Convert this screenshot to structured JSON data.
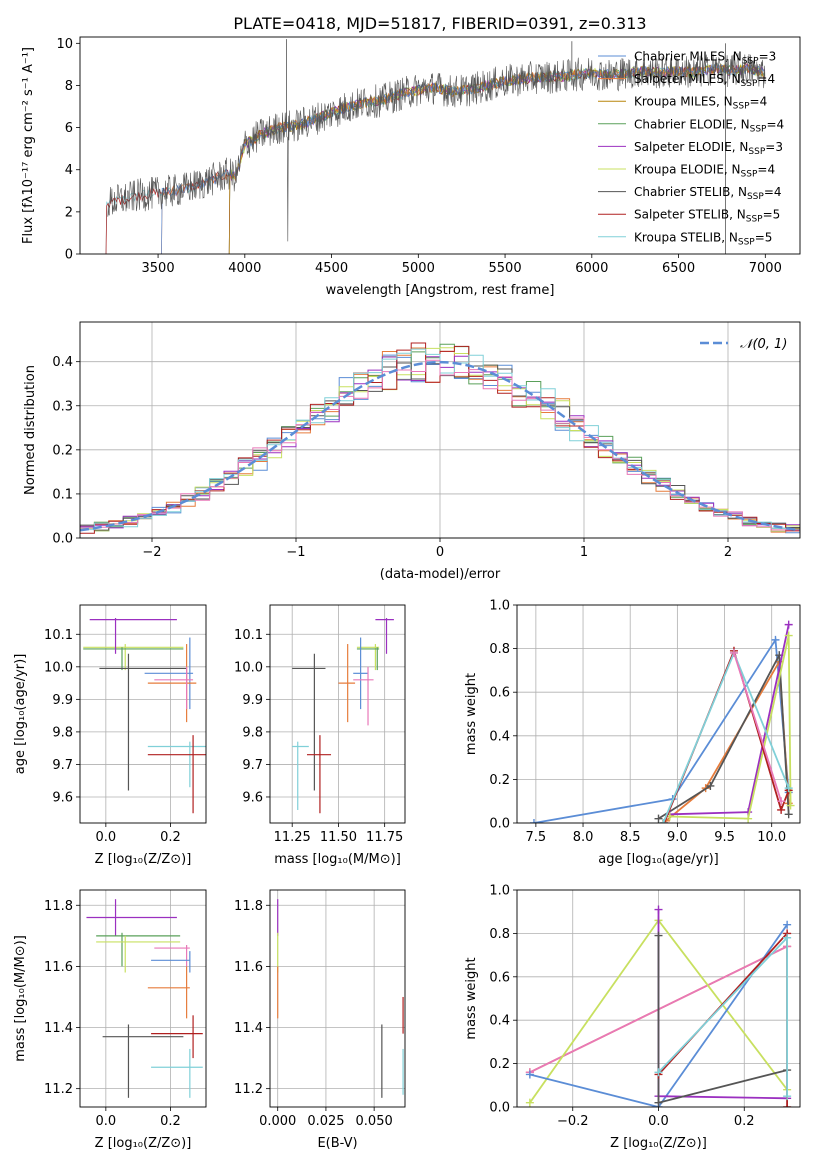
{
  "figure_title": "PLATE=0418, MJD=51817, FIBERID=0391, z=0.313",
  "colors": {
    "Chabrier MILES": "#5b8dd6",
    "Salpeter MILES": "#e67c3c",
    "Kroupa MILES": "#b8860b",
    "Chabrier ELODIE": "#5aa05a",
    "Salpeter ELODIE": "#9b30c0",
    "Kroupa ELODIE": "#c8e060",
    "Chabrier STELIB": "#555555",
    "Salpeter STELIB": "#b02020",
    "Kroupa STELIB": "#80d0d8",
    "pink": "#e878b8",
    "gauss": "#5b8dd6"
  },
  "chart_data": [
    {
      "id": "spectrum",
      "type": "line",
      "xlabel": "wavelength [Angstrom, rest frame]",
      "ylabel": "Flux [fλ10⁻¹⁷ erg cm⁻² s⁻¹ A⁻¹]",
      "xlim": [
        3050,
        7200
      ],
      "ylim": [
        0,
        10.3
      ],
      "xticks": [
        3500,
        4000,
        4500,
        5000,
        5500,
        6000,
        6500,
        7000
      ],
      "yticks": [
        0,
        2,
        4,
        6,
        8,
        10
      ],
      "legend_position": "right",
      "legend": [
        {
          "label": "Chabrier MILES, N",
          "sub": "SSP",
          "eq": "=3"
        },
        {
          "label": "Salpeter MILES, N",
          "sub": "SSP",
          "eq": "=4"
        },
        {
          "label": "Kroupa MILES, N",
          "sub": "SSP",
          "eq": "=4"
        },
        {
          "label": "Chabrier ELODIE, N",
          "sub": "SSP",
          "eq": "=4"
        },
        {
          "label": "Salpeter ELODIE, N",
          "sub": "SSP",
          "eq": "=3"
        },
        {
          "label": "Kroupa ELODIE, N",
          "sub": "SSP",
          "eq": "=4"
        },
        {
          "label": "Chabrier STELIB, N",
          "sub": "SSP",
          "eq": "=4"
        },
        {
          "label": "Salpeter STELIB, N",
          "sub": "SSP",
          "eq": "=5"
        },
        {
          "label": "Kroupa STELIB, N",
          "sub": "SSP",
          "eq": "=5"
        }
      ],
      "continuum": [
        [
          3200,
          2.4
        ],
        [
          3300,
          2.6
        ],
        [
          3400,
          2.8
        ],
        [
          3500,
          2.9
        ],
        [
          3600,
          3.0
        ],
        [
          3700,
          3.2
        ],
        [
          3800,
          3.5
        ],
        [
          3900,
          3.8
        ],
        [
          3950,
          3.7
        ],
        [
          4000,
          5.2
        ],
        [
          4100,
          5.7
        ],
        [
          4200,
          6.0
        ],
        [
          4300,
          6.1
        ],
        [
          4400,
          6.4
        ],
        [
          4500,
          6.7
        ],
        [
          4600,
          7.0
        ],
        [
          4700,
          7.2
        ],
        [
          4800,
          7.3
        ],
        [
          4900,
          7.6
        ],
        [
          5000,
          7.8
        ],
        [
          5100,
          7.9
        ],
        [
          5200,
          7.7
        ],
        [
          5300,
          7.8
        ],
        [
          5400,
          8.0
        ],
        [
          5500,
          8.2
        ],
        [
          5600,
          8.3
        ],
        [
          5700,
          8.4
        ],
        [
          5800,
          8.4
        ],
        [
          5900,
          8.5
        ],
        [
          6000,
          8.6
        ],
        [
          6100,
          8.5
        ],
        [
          6200,
          8.6
        ],
        [
          6300,
          8.7
        ],
        [
          6400,
          8.6
        ],
        [
          6500,
          8.7
        ],
        [
          6600,
          8.6
        ],
        [
          6700,
          8.8
        ],
        [
          6800,
          8.7
        ],
        [
          6900,
          8.8
        ],
        [
          7000,
          8.6
        ]
      ]
    },
    {
      "id": "residuals",
      "type": "line",
      "xlabel": "(data-model)/error",
      "ylabel": "Normed distribution",
      "xlim": [
        -2.5,
        2.5
      ],
      "ylim": [
        0,
        0.49
      ],
      "xticks": [
        -2,
        -1,
        0,
        1,
        2
      ],
      "yticks": [
        0.0,
        0.1,
        0.2,
        0.3,
        0.4
      ],
      "grid": true,
      "legend_position": "top-right",
      "legend": [
        {
          "label": "𝒩(0, 1)"
        }
      ],
      "bin_width": 0.1
    },
    {
      "id": "age_vs_Z",
      "type": "scatter",
      "xlabel": "Z [log₁₀(Z/Z⊙)]",
      "ylabel": "age  [log₁₀(age/yr)]",
      "xlim": [
        -0.08,
        0.31
      ],
      "ylim": [
        9.52,
        10.19
      ],
      "xticks": [
        0.0,
        0.2
      ],
      "yticks": [
        9.6,
        9.7,
        9.8,
        9.9,
        10.0,
        10.1
      ],
      "grid": true,
      "points": [
        {
          "s": "Kroupa ELODIE",
          "x": 0.06,
          "y": 10.06,
          "xe": [
            -0.07,
            0.24
          ],
          "ye": [
            9.99,
            10.07
          ]
        },
        {
          "s": "Chabrier ELODIE",
          "x": 0.05,
          "y": 10.055,
          "xe": [
            -0.07,
            0.24
          ],
          "ye": [
            9.99,
            10.06
          ]
        },
        {
          "s": "Salpeter ELODIE",
          "x": 0.03,
          "y": 10.145,
          "xe": [
            -0.05,
            0.22
          ],
          "ye": [
            10.04,
            10.15
          ]
        },
        {
          "s": "Chabrier STELIB",
          "x": 0.07,
          "y": 9.995,
          "xe": [
            -0.02,
            0.25
          ],
          "ye": [
            9.62,
            10.04
          ]
        },
        {
          "s": "Chabrier MILES",
          "x": 0.26,
          "y": 9.98,
          "xe": [
            0.12,
            0.27
          ],
          "ye": [
            9.87,
            10.09
          ]
        },
        {
          "s": "Salpeter MILES",
          "x": 0.25,
          "y": 9.95,
          "xe": [
            0.13,
            0.28
          ],
          "ye": [
            9.83,
            10.07
          ]
        },
        {
          "s": "pink",
          "x": 0.25,
          "y": 9.96,
          "xe": [
            0.15,
            0.27
          ],
          "ye": [
            9.87,
            10.0
          ]
        },
        {
          "s": "Kroupa STELIB",
          "x": 0.26,
          "y": 9.755,
          "xe": [
            0.13,
            0.31
          ],
          "ye": [
            9.63,
            9.77
          ]
        },
        {
          "s": "Salpeter STELIB",
          "x": 0.27,
          "y": 9.73,
          "xe": [
            0.13,
            0.31
          ],
          "ye": [
            9.55,
            9.79
          ]
        }
      ]
    },
    {
      "id": "age_vs_mass",
      "type": "scatter",
      "xlabel": "mass [log₁₀(M/M⊙)]",
      "ylabel": "",
      "xlim": [
        11.13,
        11.86
      ],
      "ylim": [
        9.52,
        10.19
      ],
      "xticks": [
        11.25,
        11.5,
        11.75
      ],
      "yticks": [
        9.6,
        9.7,
        9.8,
        9.9,
        10.0,
        10.1
      ],
      "grid": true,
      "points": [
        {
          "s": "Kroupa ELODIE",
          "x": 11.7,
          "y": 10.06,
          "xe": [
            11.6,
            11.72
          ],
          "ye": [
            9.99,
            10.07
          ]
        },
        {
          "s": "Chabrier ELODIE",
          "x": 11.71,
          "y": 10.055,
          "xe": [
            11.6,
            11.72
          ],
          "ye": [
            9.99,
            10.06
          ]
        },
        {
          "s": "Salpeter ELODIE",
          "x": 11.76,
          "y": 10.145,
          "xe": [
            11.7,
            11.8
          ],
          "ye": [
            10.04,
            10.15
          ]
        },
        {
          "s": "Chabrier STELIB",
          "x": 11.37,
          "y": 9.995,
          "xe": [
            11.25,
            11.43
          ],
          "ye": [
            9.62,
            10.04
          ]
        },
        {
          "s": "Chabrier MILES",
          "x": 11.62,
          "y": 9.98,
          "xe": [
            11.58,
            11.66
          ],
          "ye": [
            9.87,
            10.09
          ]
        },
        {
          "s": "Salpeter MILES",
          "x": 11.55,
          "y": 9.95,
          "xe": [
            11.5,
            11.59
          ],
          "ye": [
            9.83,
            10.07
          ]
        },
        {
          "s": "pink",
          "x": 11.66,
          "y": 9.96,
          "xe": [
            11.58,
            11.69
          ],
          "ye": [
            9.82,
            10.0
          ]
        },
        {
          "s": "Kroupa STELIB",
          "x": 11.28,
          "y": 9.755,
          "xe": [
            11.25,
            11.34
          ],
          "ye": [
            9.56,
            9.77
          ]
        },
        {
          "s": "Salpeter STELIB",
          "x": 11.4,
          "y": 9.73,
          "xe": [
            11.33,
            11.46
          ],
          "ye": [
            9.55,
            9.79
          ]
        }
      ]
    },
    {
      "id": "weight_vs_age",
      "type": "line",
      "xlabel": "age  [log₁₀(age/yr)]",
      "ylabel": "mass weight",
      "xlim": [
        7.3,
        10.3
      ],
      "ylim": [
        0,
        1.0
      ],
      "xticks": [
        7.5,
        8.0,
        8.5,
        9.0,
        9.5,
        10.0
      ],
      "yticks": [
        0.0,
        0.2,
        0.4,
        0.6,
        0.8,
        1.0
      ],
      "grid": true,
      "series": [
        {
          "s": "Chabrier MILES",
          "points": [
            [
              7.48,
              0.0
            ],
            [
              8.95,
              0.11
            ],
            [
              10.04,
              0.84
            ],
            [
              10.18,
              0.14
            ]
          ]
        },
        {
          "s": "Salpeter MILES",
          "points": [
            [
              8.88,
              0.01
            ],
            [
              9.3,
              0.16
            ],
            [
              10.08,
              0.74
            ],
            [
              10.18,
              0.09
            ]
          ]
        },
        {
          "s": "Chabrier STELIB",
          "points": [
            [
              8.8,
              0.02
            ],
            [
              9.35,
              0.17
            ],
            [
              10.08,
              0.77
            ],
            [
              10.18,
              0.04
            ]
          ]
        },
        {
          "s": "Salpeter ELODIE",
          "points": [
            [
              8.92,
              0.04
            ],
            [
              9.75,
              0.05
            ],
            [
              10.18,
              0.91
            ]
          ]
        },
        {
          "s": "Kroupa ELODIE",
          "points": [
            [
              8.92,
              0.03
            ],
            [
              9.75,
              0.02
            ],
            [
              10.18,
              0.86
            ],
            [
              10.2,
              0.08
            ]
          ]
        },
        {
          "s": "Salpeter STELIB",
          "points": [
            [
              8.86,
              0.0
            ],
            [
              9.6,
              0.79
            ],
            [
              10.1,
              0.06
            ],
            [
              10.18,
              0.15
            ]
          ]
        },
        {
          "s": "Kroupa STELIB",
          "points": [
            [
              8.85,
              0.0
            ],
            [
              9.6,
              0.78
            ],
            [
              10.18,
              0.16
            ]
          ]
        },
        {
          "s": "pink",
          "points": [
            [
              9.6,
              0.78
            ],
            [
              10.1,
              0.1
            ]
          ]
        }
      ]
    },
    {
      "id": "mass_vs_Z",
      "type": "scatter",
      "xlabel": "Z [log₁₀(Z/Z⊙)]",
      "ylabel": "mass [log₁₀(M/M⊙)]",
      "xlim": [
        -0.08,
        0.31
      ],
      "ylim": [
        11.14,
        11.85
      ],
      "xticks": [
        0.0,
        0.2
      ],
      "yticks": [
        11.2,
        11.4,
        11.6,
        11.8
      ],
      "grid": true,
      "points": [
        {
          "s": "Salpeter ELODIE",
          "x": 0.03,
          "y": 11.76,
          "xe": [
            -0.06,
            0.22
          ],
          "ye": [
            11.7,
            11.82
          ]
        },
        {
          "s": "Chabrier ELODIE",
          "x": 0.05,
          "y": 11.7,
          "xe": [
            -0.03,
            0.23
          ],
          "ye": [
            11.6,
            11.71
          ]
        },
        {
          "s": "Kroupa ELODIE",
          "x": 0.06,
          "y": 11.68,
          "xe": [
            -0.03,
            0.23
          ],
          "ye": [
            11.58,
            11.7
          ]
        },
        {
          "s": "pink",
          "x": 0.25,
          "y": 11.66,
          "xe": [
            0.15,
            0.26
          ],
          "ye": [
            11.6,
            11.67
          ]
        },
        {
          "s": "Chabrier MILES",
          "x": 0.26,
          "y": 11.62,
          "xe": [
            0.14,
            0.26
          ],
          "ye": [
            11.58,
            11.65
          ]
        },
        {
          "s": "Salpeter MILES",
          "x": 0.25,
          "y": 11.53,
          "xe": [
            0.13,
            0.26
          ],
          "ye": [
            11.43,
            11.6
          ]
        },
        {
          "s": "Salpeter STELIB",
          "x": 0.27,
          "y": 11.38,
          "xe": [
            0.14,
            0.3
          ],
          "ye": [
            11.3,
            11.44
          ]
        },
        {
          "s": "Chabrier STELIB",
          "x": 0.07,
          "y": 11.37,
          "xe": [
            -0.01,
            0.24
          ],
          "ye": [
            11.17,
            11.41
          ]
        },
        {
          "s": "Kroupa STELIB",
          "x": 0.26,
          "y": 11.27,
          "xe": [
            0.14,
            0.3
          ],
          "ye": [
            11.17,
            11.33
          ]
        }
      ]
    },
    {
      "id": "mass_vs_ebv",
      "type": "scatter",
      "xlabel": "E(B-V)",
      "ylabel": "",
      "xlim": [
        -0.004,
        0.066
      ],
      "ylim": [
        11.14,
        11.85
      ],
      "xticks": [
        0.0,
        0.025,
        0.05
      ],
      "yticks": [
        11.2,
        11.4,
        11.6,
        11.8
      ],
      "grid": true,
      "points": [
        {
          "s": "Salpeter ELODIE",
          "x": 0.0,
          "y": 11.76,
          "ye": [
            11.7,
            11.82
          ]
        },
        {
          "s": "Kroupa ELODIE",
          "x": 0.0,
          "y": 11.68,
          "ye": [
            11.58,
            11.71
          ]
        },
        {
          "s": "Salpeter MILES",
          "x": 0.0,
          "y": 11.53,
          "ye": [
            11.43,
            11.6
          ]
        },
        {
          "s": "Chabrier STELIB",
          "x": 0.054,
          "y": 11.3,
          "ye": [
            11.17,
            11.41
          ]
        },
        {
          "s": "Salpeter STELIB",
          "x": 0.065,
          "y": 11.44,
          "ye": [
            11.38,
            11.5
          ]
        },
        {
          "s": "Kroupa STELIB",
          "x": 0.065,
          "y": 11.28,
          "ye": [
            11.18,
            11.33
          ]
        }
      ]
    },
    {
      "id": "weight_vs_Z",
      "type": "line",
      "xlabel": "Z [log₁₀(Z/Z⊙)]",
      "ylabel": "mass weight",
      "xlim": [
        -0.33,
        0.33
      ],
      "ylim": [
        0,
        1.0
      ],
      "xticks": [
        -0.2,
        0.0,
        0.2
      ],
      "yticks": [
        0.0,
        0.2,
        0.4,
        0.6,
        0.8,
        1.0
      ],
      "grid": true,
      "series": [
        {
          "s": "Salpeter MILES",
          "points": [
            [
              -0.3,
              0.16
            ],
            [
              0.3,
              0.74
            ]
          ]
        },
        {
          "s": "pink",
          "points": [
            [
              -0.3,
              0.16
            ],
            [
              0.3,
              0.74
            ]
          ]
        },
        {
          "s": "Kroupa ELODIE",
          "points": [
            [
              -0.3,
              0.02
            ],
            [
              0.0,
              0.86
            ],
            [
              0.3,
              0.08
            ]
          ]
        },
        {
          "s": "Chabrier MILES",
          "points": [
            [
              -0.3,
              0.15
            ],
            [
              0.0,
              0.0
            ],
            [
              0.3,
              0.84
            ]
          ]
        },
        {
          "s": "Salpeter ELODIE",
          "points": [
            [
              0.0,
              0.91
            ],
            [
              0.0,
              0.05
            ],
            [
              0.3,
              0.04
            ]
          ]
        },
        {
          "s": "Chabrier STELIB",
          "points": [
            [
              0.0,
              0.79
            ],
            [
              0.0,
              0.02
            ],
            [
              0.3,
              0.17
            ]
          ]
        },
        {
          "s": "Salpeter STELIB",
          "points": [
            [
              0.0,
              0.15
            ],
            [
              0.3,
              0.8
            ],
            [
              0.3,
              0.0
            ]
          ]
        },
        {
          "s": "Kroupa STELIB",
          "points": [
            [
              0.0,
              0.16
            ],
            [
              0.3,
              0.78
            ],
            [
              0.3,
              0.05
            ]
          ]
        }
      ]
    }
  ]
}
